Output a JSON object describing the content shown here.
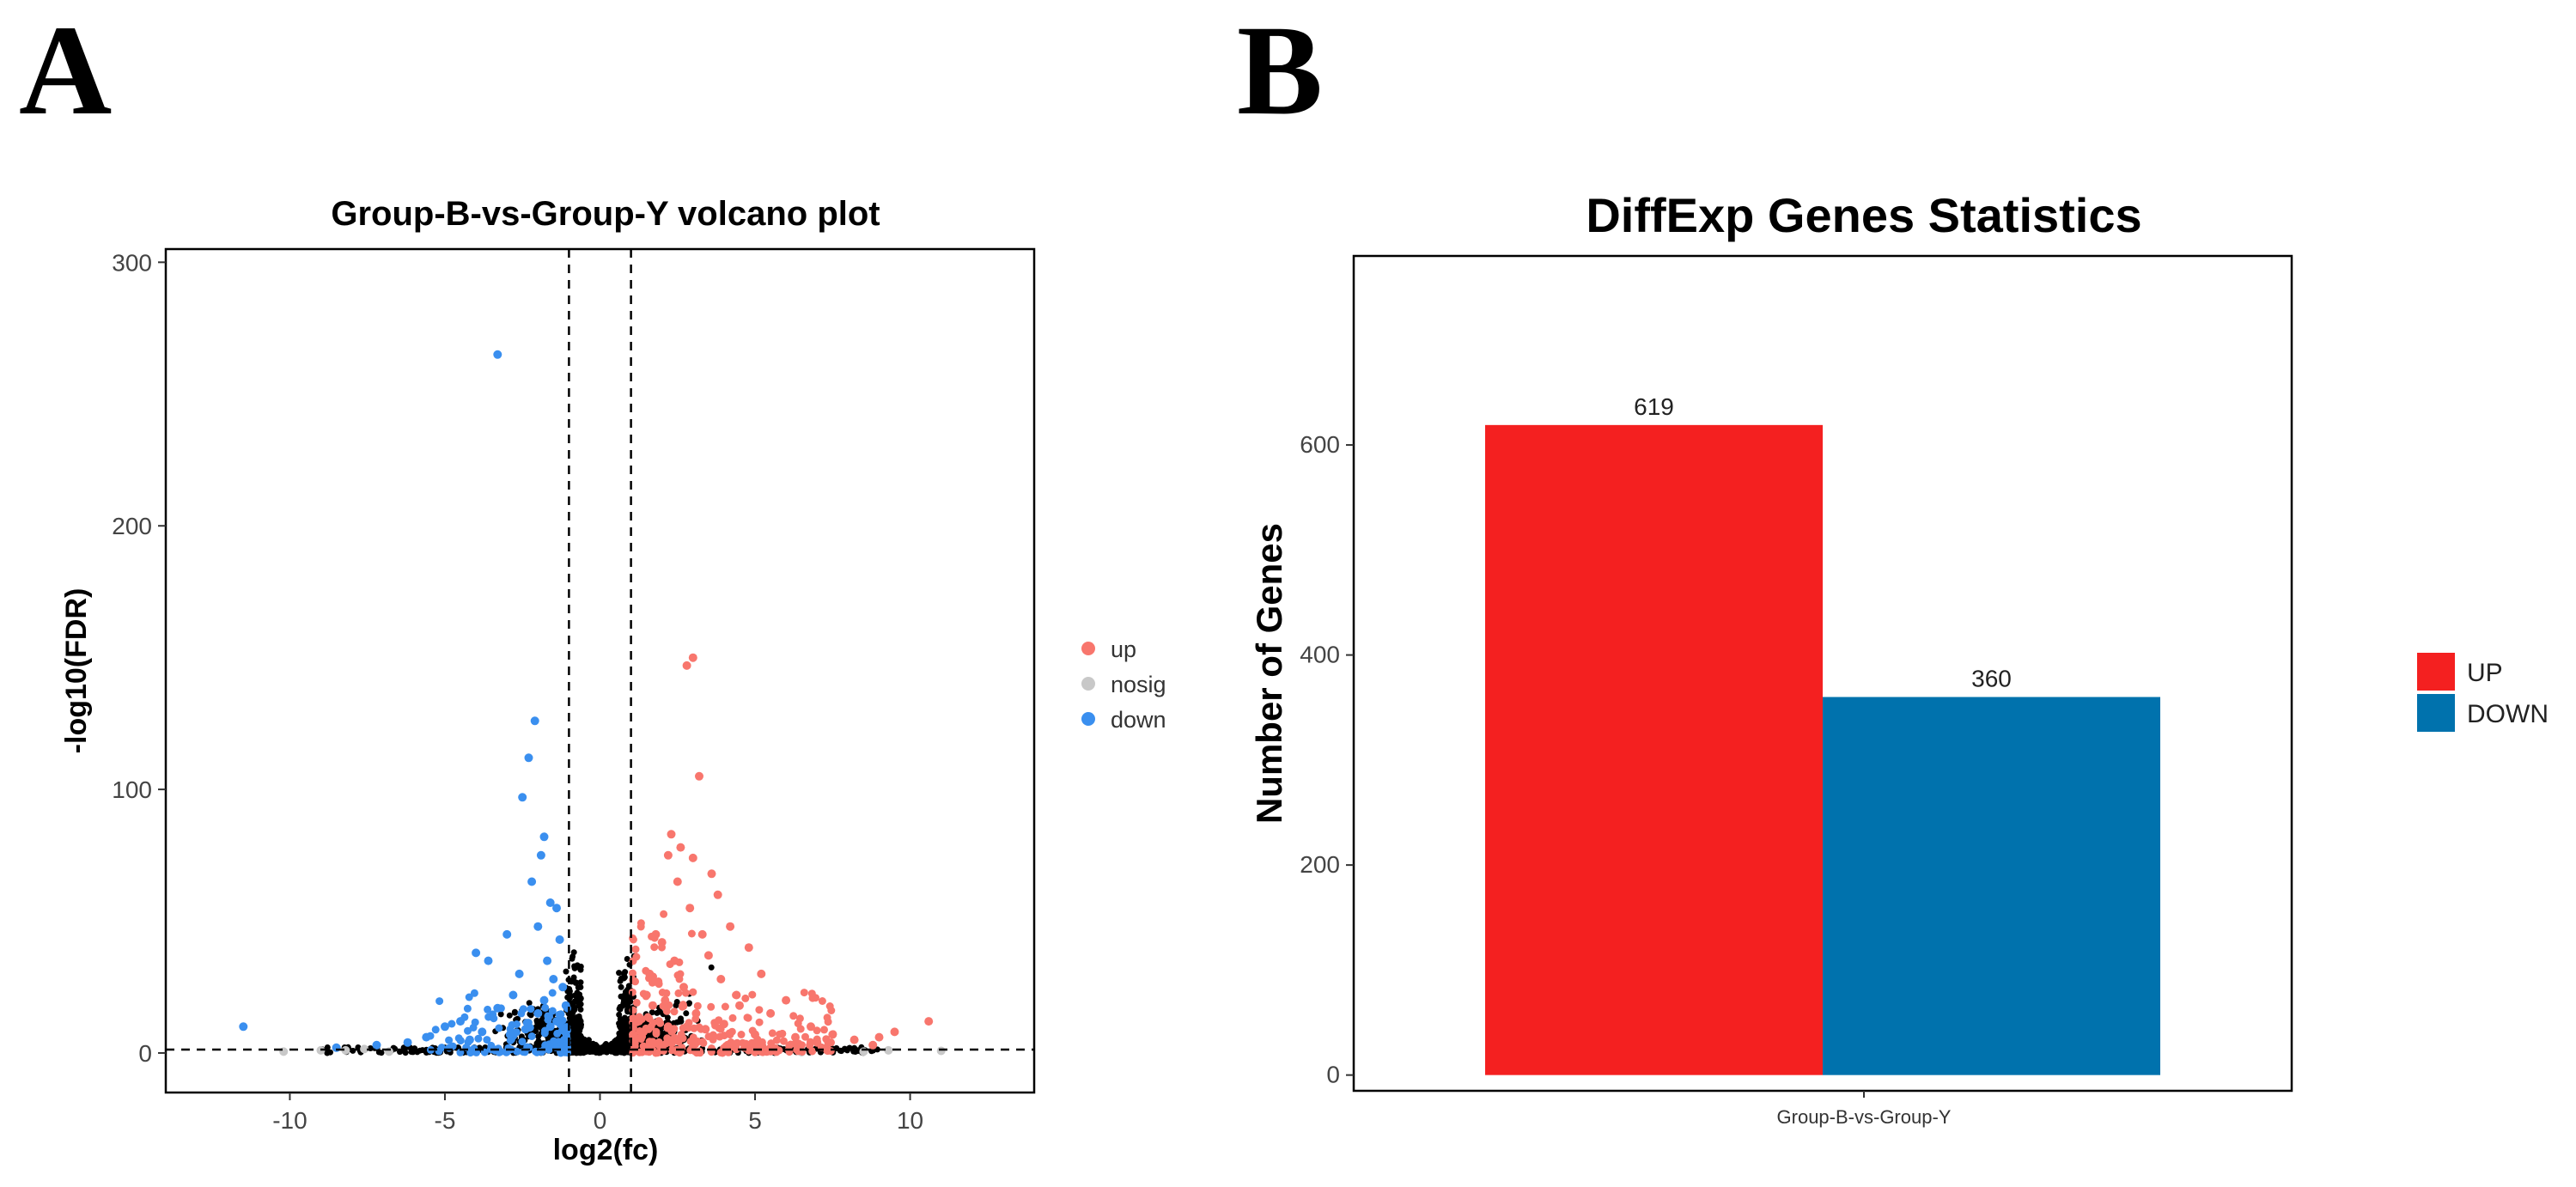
{
  "panels": [
    {
      "letter": "A",
      "chart_data": {
        "type": "scatter",
        "title": "Group-B-vs-Group-Y volcano plot",
        "xlabel": "log2(fc)",
        "ylabel": "-log10(FDR)",
        "xlim": [
          -14,
          14
        ],
        "ylim": [
          -15,
          305
        ],
        "xticks": [
          -10,
          -5,
          0,
          5,
          10
        ],
        "yticks": [
          0,
          100,
          200,
          300
        ],
        "grid": false,
        "legend_position": "right",
        "thresholds": {
          "x": [
            -1,
            1
          ],
          "y": 1.3
        },
        "colors": {
          "up": "#f8766d",
          "nosig": "#c8c8c8",
          "down": "#3a8fef",
          "dense": "#000000"
        },
        "series": [
          {
            "name": "up",
            "color": "#f8766d",
            "points": [
              [
                3.0,
                150
              ],
              [
                2.8,
                147
              ],
              [
                3.2,
                105
              ],
              [
                2.3,
                83
              ],
              [
                2.6,
                78
              ],
              [
                2.2,
                75
              ],
              [
                3.0,
                74
              ],
              [
                3.6,
                68
              ],
              [
                2.5,
                65
              ],
              [
                3.8,
                60
              ],
              [
                2.9,
                55
              ],
              [
                4.2,
                48
              ],
              [
                3.3,
                45
              ],
              [
                1.8,
                45
              ],
              [
                2.0,
                42
              ],
              [
                4.8,
                40
              ],
              [
                3.5,
                37
              ],
              [
                2.4,
                35
              ],
              [
                5.2,
                30
              ],
              [
                1.6,
                30
              ],
              [
                3.9,
                28
              ],
              [
                2.7,
                25
              ],
              [
                6.0,
                20
              ],
              [
                1.5,
                22
              ],
              [
                4.5,
                18
              ],
              [
                5.5,
                15
              ],
              [
                3.1,
                15
              ],
              [
                6.8,
                10
              ],
              [
                7.5,
                7
              ],
              [
                8.2,
                5
              ],
              [
                9.0,
                6
              ],
              [
                10.6,
                12
              ],
              [
                9.5,
                8
              ],
              [
                7.0,
                4
              ],
              [
                8.8,
                3
              ],
              [
                1.9,
                12
              ],
              [
                2.2,
                10
              ],
              [
                1.4,
                8
              ],
              [
                3.4,
                9
              ],
              [
                4.0,
                11
              ],
              [
                5.0,
                7
              ],
              [
                6.3,
                6
              ],
              [
                1.7,
                18
              ],
              [
                2.1,
                20
              ],
              [
                4.4,
                22
              ]
            ]
          },
          {
            "name": "nosig",
            "points": [
              [
                -9.0,
                1
              ],
              [
                -8.2,
                1
              ],
              [
                -7.6,
                1.5
              ],
              [
                -6.8,
                0.5
              ],
              [
                -10.2,
                0.5
              ],
              [
                8.5,
                0.5
              ],
              [
                9.3,
                1
              ],
              [
                11.0,
                0.8
              ],
              [
                6.5,
                0.3
              ]
            ]
          },
          {
            "name": "down",
            "color": "#3a8fef",
            "points": [
              [
                -3.3,
                265
              ],
              [
                -2.1,
                126
              ],
              [
                -2.3,
                112
              ],
              [
                -2.5,
                97
              ],
              [
                -1.8,
                82
              ],
              [
                -1.9,
                75
              ],
              [
                -2.2,
                65
              ],
              [
                -1.6,
                57
              ],
              [
                -1.4,
                55
              ],
              [
                -2.0,
                48
              ],
              [
                -3.0,
                45
              ],
              [
                -1.3,
                43
              ],
              [
                -4.0,
                38
              ],
              [
                -1.7,
                35
              ],
              [
                -3.6,
                35
              ],
              [
                -2.6,
                30
              ],
              [
                -1.5,
                28
              ],
              [
                -2.8,
                22
              ],
              [
                -1.2,
                25
              ],
              [
                -3.3,
                17
              ],
              [
                -2.0,
                15
              ],
              [
                -4.5,
                12
              ],
              [
                -1.4,
                12
              ],
              [
                -5.0,
                10
              ],
              [
                -3.8,
                8
              ],
              [
                -11.5,
                10
              ],
              [
                -5.6,
                6
              ],
              [
                -6.2,
                4
              ],
              [
                -7.2,
                3
              ],
              [
                -8.5,
                2
              ],
              [
                -2.4,
                9
              ],
              [
                -1.8,
                20
              ],
              [
                -1.1,
                18
              ],
              [
                -4.2,
                5
              ],
              [
                -2.9,
                7
              ],
              [
                -1.6,
                10
              ]
            ]
          }
        ]
      }
    },
    {
      "letter": "B",
      "chart_data": {
        "type": "bar",
        "title": "DiffExp Genes Statistics",
        "categories": [
          "Group-B-vs-Group-Y"
        ],
        "series": [
          {
            "name": "UP",
            "color": "#f42020",
            "values": [
              619
            ]
          },
          {
            "name": "DOWN",
            "color": "#0072ad",
            "values": [
              360
            ]
          }
        ],
        "xlabel": "",
        "ylabel": "Number of Genes",
        "ylim": [
          -15,
          780
        ],
        "yticks": [
          0,
          200,
          400,
          600
        ],
        "grid": false,
        "legend_position": "right"
      }
    }
  ]
}
